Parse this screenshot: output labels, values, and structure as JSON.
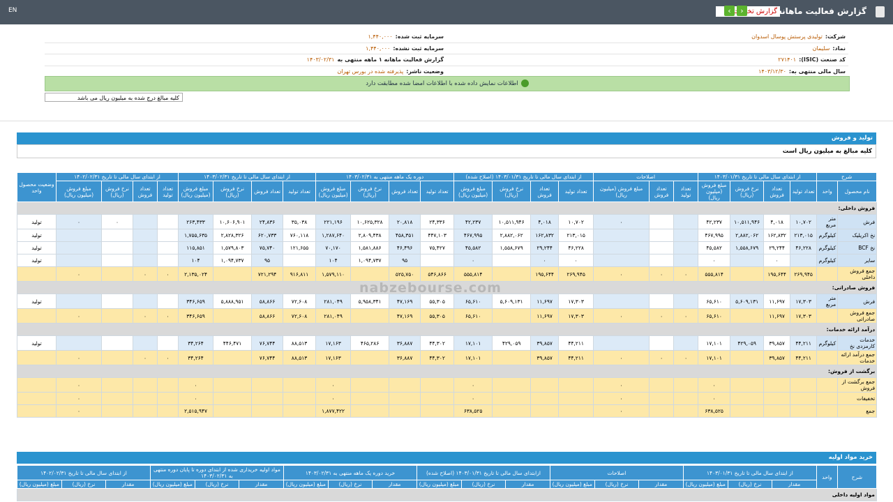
{
  "header": {
    "title": "گزارش فعالیت ماهانه",
    "select": "گزارش تخلفات",
    "lang": "EN"
  },
  "info": {
    "rows": [
      [
        {
          "label": "شرکت:",
          "value": "تولیدی پرستش پوسال اسدوان"
        },
        {
          "label": "سرمایه ثبت شده:",
          "value": "۱,۴۴۰,۰۰۰"
        }
      ],
      [
        {
          "label": "نماد:",
          "value": "سلیمان"
        },
        {
          "label": "سرمایه ثبت نشده:",
          "value": "۱,۴۴۰,۰۰۰"
        }
      ],
      [
        {
          "label": "کد صنعت (ISIC):",
          "value": "۲۷۱۴۰۱"
        },
        {
          "label": "گزارش فعالیت ماهانه ۱ ماهه منتهی به",
          "value": "۱۴۰۳/۰۲/۳۱"
        }
      ],
      [
        {
          "label": "سال مالی منتهی به:",
          "value": "۱۴۰۳/۱۲/۳۰"
        },
        {
          "label": "وضعیت ناشر:",
          "value": "پذیرفته شده در بورس تهران"
        }
      ]
    ],
    "banner": "اطلاعات نمایش داده شده با اطلاعات امضا شده مطابقت دارد",
    "note": "کلیه مبالغ درج شده به میلیون ریال می باشد"
  },
  "watermark": "nabzebourse.com",
  "sales": {
    "title": "تولید و فروش",
    "note": "کلیه مبالغ به میلیون ریال است",
    "desc": "شرح",
    "name_col": "نام محصول",
    "unit_col": "واحد",
    "status_col": "وضعیت محصول واحد",
    "groups": [
      {
        "title": "از ابتدای سال مالی تا تاریخ ۱۴۰۳/۰۱/۳۱",
        "cols": [
          "تعداد تولید",
          "تعداد فروش",
          "نرخ فروش (ریال)",
          "مبلغ فروش (میلیون ریال)"
        ]
      },
      {
        "title": "اصلاحات",
        "cols": [
          "تعداد تولید",
          "تعداد فروش",
          "مبلغ فروش (میلیون ریال)"
        ]
      },
      {
        "title": "از ابتدای سال مالی تا تاریخ ۱۴۰۳/۰۱/۳۱ (اصلاح شده)",
        "cols": [
          "تعداد تولید",
          "تعداد فروش",
          "نرخ فروش (ریال)",
          "مبلغ فروش (میلیون ریال)"
        ]
      },
      {
        "title": "دوره یک ماهه منتهی به ۱۴۰۳/۰۲/۳۱",
        "cols": [
          "تعداد تولید",
          "تعداد فروش",
          "نرخ فروش (ریال)",
          "مبلغ فروش (میلیون ریال)"
        ]
      },
      {
        "title": "از ابتدای سال مالی تا تاریخ ۱۴۰۳/۰۲/۳۱",
        "cols": [
          "تعداد تولید",
          "تعداد فروش",
          "نرخ فروش (ریال)",
          "مبلغ فروش (میلیون ریال)"
        ]
      },
      {
        "title": "از ابتدای سال مالی تا تاریخ ۱۴۰۲/۰۲/۳۱",
        "cols": [
          "تعداد تولید",
          "تعداد فروش",
          "نرخ فروش (ریال)",
          "مبلغ فروش (میلیون ریال)"
        ]
      }
    ],
    "rows": [
      {
        "section": "فروش داخلی:"
      },
      {
        "cells": [
          "فرش",
          "متر مربع",
          "۱۰,۷۰۲",
          "۴,۰۱۸",
          "۱۰,۵۱۱,۹۴۶",
          "۴۲,۲۳۷",
          null,
          null,
          "۰",
          "۱۰,۷۰۲",
          "۴,۰۱۸",
          "۱۰,۵۱۱,۹۴۶",
          "۴۲,۲۳۷",
          "۲۴,۳۳۶",
          "۲۰,۸۱۸",
          "۱۰,۶۲۵,۳۲۸",
          "۲۲۱,۱۹۶",
          "۳۵,۰۳۸",
          "۲۴,۸۳۶",
          "۱۰,۶۰۶,۹۰۱",
          "۲۶۳,۴۳۳",
          null,
          null,
          "۰",
          "۰",
          "تولید"
        ]
      },
      {
        "cells": [
          "نخ اکریلیک",
          "کیلوگرم",
          "۲۱۳,۰۱۵",
          "۱۶۲,۸۳۲",
          "۲,۸۸۲,۰۶۲",
          "۴۶۷,۹۹۵",
          null,
          null,
          null,
          "۲۱۳,۰۱۵",
          "۱۶۲,۸۳۲",
          "۲,۸۸۲,۰۶۲",
          "۴۶۷,۹۹۵",
          "۴۴۷,۱۰۳",
          "۴۵۸,۳۵۱",
          "۲,۸۰۹,۴۳۸",
          "۱,۲۸۷,۶۴۰",
          "۷۶۰,۱۱۸",
          "۶۲۰,۷۳۳",
          "۲,۸۲۸,۳۲۶",
          "۱,۷۵۵,۶۳۵",
          null,
          null,
          null,
          null,
          "تولید"
        ]
      },
      {
        "cells": [
          "نخ BCF",
          "کیلوگرم",
          "۴۶,۲۲۸",
          "۲۹,۲۴۴",
          "۱,۵۵۸,۶۷۹",
          "۴۵,۵۸۲",
          null,
          null,
          null,
          "۴۶,۲۲۸",
          "۲۹,۲۴۴",
          "۱,۵۵۸,۶۷۹",
          "۴۵,۵۸۲",
          "۷۵,۴۲۷",
          "۴۶,۴۹۶",
          "۱,۵۸۱,۸۸۶",
          "۷۰,۱۷۰",
          "۱۲۱,۶۵۵",
          "۷۵,۷۴۰",
          "۱,۵۷۹,۸۰۳",
          "۱۱۵,۸۵۱",
          null,
          null,
          null,
          null,
          "تولید"
        ]
      },
      {
        "cells": [
          "سایر",
          "کیلوگرم",
          null,
          "۰",
          null,
          "۰",
          null,
          null,
          null,
          "۰",
          "۰",
          null,
          "۰",
          null,
          "۹۵",
          "۱,۰۹۴,۷۳۷",
          "۱۰۴",
          null,
          "۹۵",
          "۱,۰۹۴,۷۳۷",
          "۱۰۴",
          null,
          null,
          null,
          null,
          "تولید"
        ]
      },
      {
        "total": [
          "جمع فروش داخلی",
          null,
          "۲۶۹,۹۴۵",
          "۱۹۵,۶۴۴",
          null,
          "۵۵۵,۸۱۴",
          "۰",
          "۰",
          "۰",
          "۲۶۹,۹۴۵",
          "۱۹۵,۶۴۴",
          null,
          "۵۵۵,۸۱۴",
          "۵۴۶,۸۶۶",
          "۵۲۵,۷۵۰",
          null,
          "۱,۵۷۹,۱۱۰",
          "۹۱۶,۸۱۱",
          "۷۲۱,۲۹۴",
          null,
          "۲,۱۳۵,۰۲۴",
          "۰",
          "۰",
          null,
          "۰",
          null
        ]
      },
      {
        "section": "فروش صادراتی:"
      },
      {
        "cells": [
          "فرش",
          "متر مربع",
          "۱۷,۳۰۳",
          "۱۱,۶۹۷",
          "۵,۶۰۹,۱۳۱",
          "۶۵,۶۱۰",
          null,
          null,
          null,
          "۱۷,۳۰۳",
          "۱۱,۶۹۷",
          "۵,۶۰۹,۱۳۱",
          "۶۵,۶۱۰",
          "۵۵,۳۰۵",
          "۴۷,۱۶۹",
          "۵,۹۵۸,۳۴۱",
          "۲۸۱,۰۴۹",
          "۷۲,۶۰۸",
          "۵۸,۸۶۶",
          "۵,۸۸۸,۹۵۱",
          "۳۴۶,۶۵۹",
          null,
          null,
          null,
          null,
          "تولید"
        ]
      },
      {
        "total": [
          "جمع فروش صادراتی",
          null,
          "۱۷,۳۰۳",
          "۱۱,۶۹۷",
          null,
          "۶۵,۶۱۰",
          "۰",
          "۰",
          "۰",
          "۱۷,۳۰۳",
          "۱۱,۶۹۷",
          null,
          "۶۵,۶۱۰",
          "۵۵,۳۰۵",
          "۴۷,۱۶۹",
          null,
          "۲۸۱,۰۴۹",
          "۷۲,۶۰۸",
          "۵۸,۸۶۶",
          null,
          "۳۴۶,۶۵۹",
          "۰",
          "۰",
          null,
          "۰",
          null
        ]
      },
      {
        "section": "درآمد ارائه خدمات:"
      },
      {
        "cells": [
          "خدمات کارمزدی نخ",
          "کیلوگرم",
          "۴۴,۲۱۱",
          "۳۹,۸۵۷",
          "۴۲۹,۰۵۹",
          "۱۷,۱۰۱",
          null,
          null,
          null,
          "۴۴,۲۱۱",
          "۳۹,۸۵۷",
          "۴۲۹,۰۵۹",
          "۱۷,۱۰۱",
          "۴۴,۳۰۲",
          "۳۶,۸۸۷",
          "۴۶۵,۲۸۶",
          "۱۷,۱۶۳",
          "۸۸,۵۱۳",
          "۷۶,۷۴۴",
          "۴۴۶,۴۷۱",
          "۳۴,۲۶۴",
          null,
          null,
          null,
          null,
          "تولید"
        ]
      },
      {
        "total": [
          "جمع درآمد ارائه خدمات",
          null,
          "۴۴,۲۱۱",
          "۳۹,۸۵۷",
          null,
          "۱۷,۱۰۱",
          "۰",
          "۰",
          "۰",
          "۴۴,۲۱۱",
          "۳۹,۸۵۷",
          null,
          "۱۷,۱۰۱",
          "۴۴,۳۰۲",
          "۳۶,۸۸۷",
          null,
          "۱۷,۱۶۳",
          "۸۸,۵۱۳",
          "۷۶,۷۴۴",
          null,
          "۳۴,۲۶۴",
          "۰",
          "۰",
          null,
          "۰",
          null
        ]
      },
      {
        "section": "برگشت از فروش:"
      },
      {
        "total": [
          "جمع برگشت از فروش",
          null,
          null,
          null,
          null,
          "۰",
          null,
          null,
          "۰",
          null,
          null,
          null,
          "۰",
          null,
          null,
          null,
          "۰",
          null,
          null,
          null,
          "۰",
          null,
          null,
          null,
          "۰",
          null
        ]
      },
      {
        "total": [
          "تخفیفات",
          null,
          null,
          null,
          null,
          "۰",
          null,
          null,
          "۰",
          null,
          null,
          null,
          "۰",
          null,
          null,
          null,
          "۰",
          null,
          null,
          null,
          "۰",
          null,
          null,
          null,
          "۰",
          null
        ]
      },
      {
        "total": [
          "جمع",
          null,
          null,
          null,
          null,
          "۶۳۸,۵۲۵",
          null,
          null,
          "۰",
          null,
          null,
          null,
          "۶۳۸,۵۲۵",
          null,
          null,
          null,
          "۱,۸۷۷,۴۲۲",
          null,
          null,
          null,
          "۲,۵۱۵,۹۴۷",
          null,
          null,
          null,
          "۰",
          null
        ]
      }
    ]
  },
  "purchase": {
    "title": "خرید مواد اولیه",
    "desc": "شرح",
    "unit_col": "واحد",
    "groups": [
      {
        "title": "از ابتدای سال مالی تا تاریخ ۱۴۰۳/۰۱/۳۱",
        "cols": [
          "مقدار",
          "نرخ (ریال)",
          "مبلغ (میلیون ریال)"
        ]
      },
      {
        "title": "اصلاحات",
        "cols": [
          "مقدار",
          "نرخ (ریال)",
          "مبلغ (میلیون ریال)"
        ]
      },
      {
        "title": "ازابتدای سال مالی تا تاریخ ۱۴۰۳/۰۱/۳۱ (اصلاح شده)",
        "cols": [
          "مقدار",
          "نرخ (ریال)",
          "مبلغ (میلیون ریال)"
        ]
      },
      {
        "title": "خرید دوره یک ماهه منتهی به ۱۴۰۳/۰۲/۳۱",
        "cols": [
          "مقدار",
          "نرخ (ریال)",
          "مبلغ (میلیون ریال)"
        ]
      },
      {
        "title": "مواد اولیه خریداری شده از ابتدای دوره تا پایان دوره منتهی به ۱۴۰۳/۰۲/۳۱",
        "cols": [
          "مقدار",
          "نرخ (ریال)",
          "مبلغ (میلیون ریال)"
        ]
      },
      {
        "title": "از ابتدای سال مالی تا تاریخ ۱۴۰۲/۰۲/۳۱",
        "cols": [
          "مقدار",
          "نرخ (ریال)",
          "مبلغ (میلیون ریال)"
        ]
      }
    ],
    "section": "مواد اولیه داخلی"
  }
}
